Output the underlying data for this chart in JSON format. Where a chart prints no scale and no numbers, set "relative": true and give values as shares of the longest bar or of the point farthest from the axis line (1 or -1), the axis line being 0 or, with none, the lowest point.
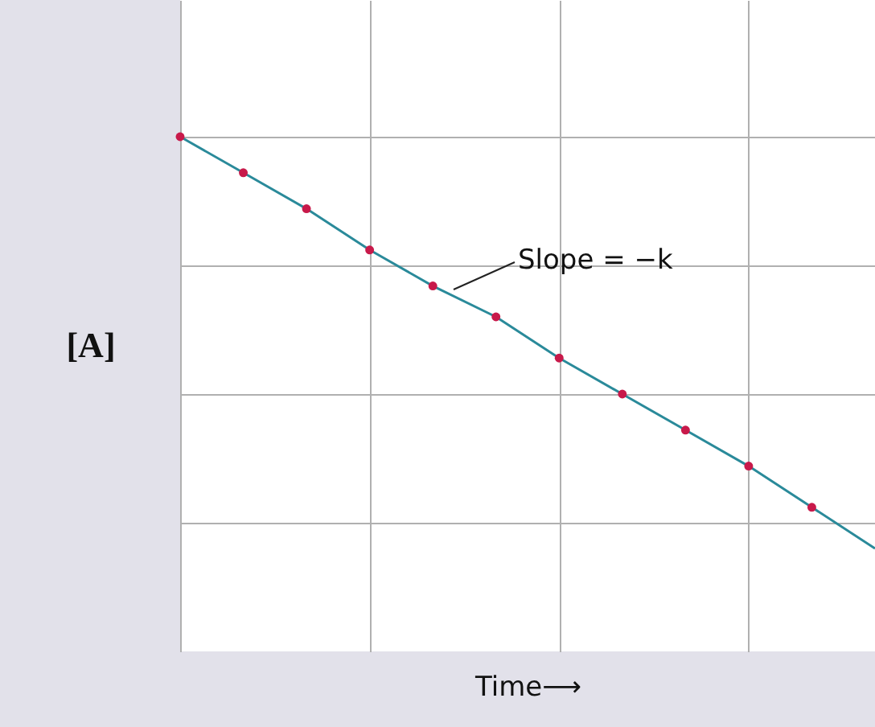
{
  "chart_data": {
    "type": "line",
    "relative": true,
    "xlabel": "Time⟶",
    "ylabel": "[A]",
    "categories": [
      null,
      null,
      null,
      null,
      null,
      null,
      null,
      null,
      null,
      null,
      null,
      null
    ],
    "series": [
      {
        "color": "#2a8a9a",
        "values": [
          1,
          0.93,
          0.86,
          0.78,
          0.71,
          0.65,
          0.57,
          0.5,
          0.43,
          0.36,
          0.28,
          0.2
        ],
        "colors": [
          "#c8194a",
          "#c8194a",
          "#c8194a",
          "#c8194a",
          "#c8194a",
          "#c8194a",
          "#c8194a",
          "#c8194a",
          "#c8194a",
          "#c8194a",
          "#c8194a",
          null
        ]
      }
    ],
    "grid": true,
    "marker": "circle",
    "tick_labels": false,
    "annotations": [
      "Slope = −k"
    ]
  }
}
